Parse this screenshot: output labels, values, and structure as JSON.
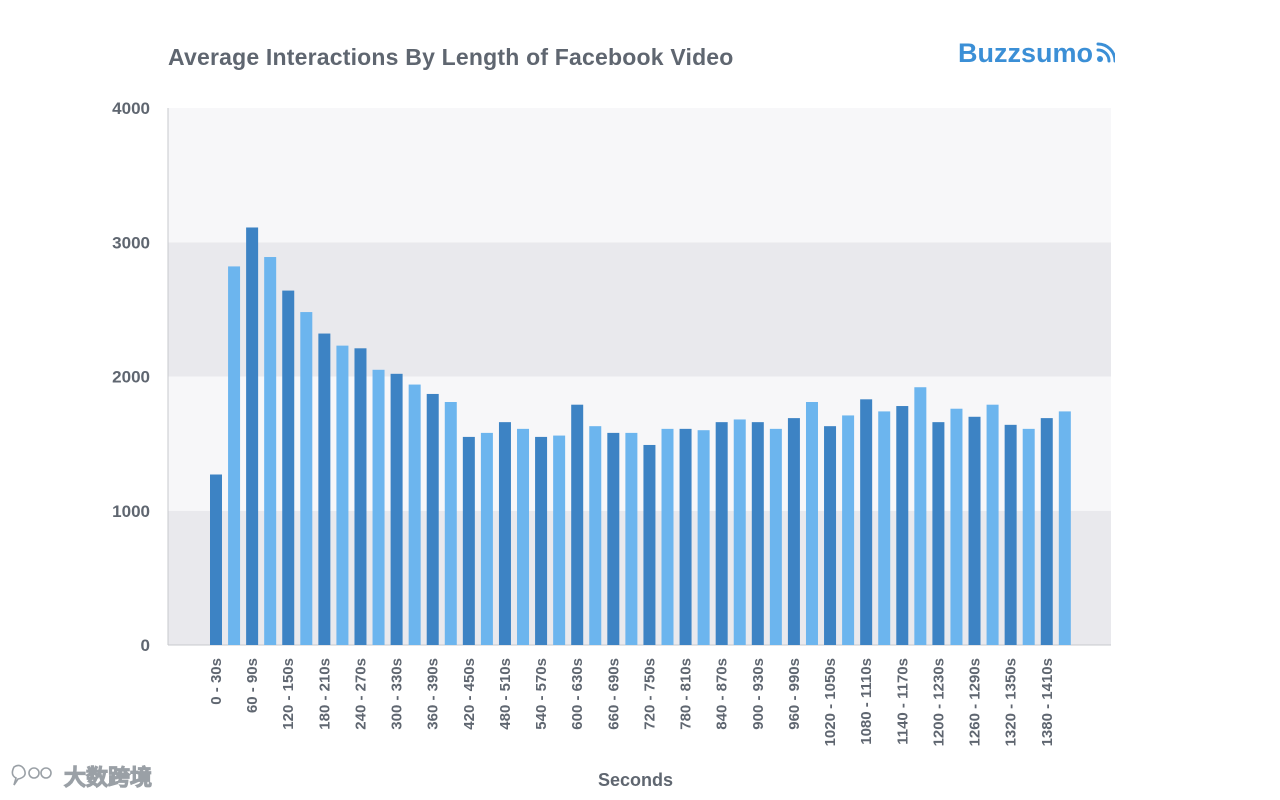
{
  "chart_data": {
    "type": "bar",
    "title": "Average Interactions By Length of Facebook Video",
    "xlabel": "Seconds",
    "ylabel": "",
    "ylim": [
      0,
      4000
    ],
    "yticks": [
      "0",
      "1000",
      "2000",
      "3000",
      "4000"
    ],
    "colors": [
      "#3d83c4",
      "#6cb5ee"
    ],
    "background_bands": [
      "#e9e9ed",
      "#f7f7f9"
    ],
    "grid": false,
    "categories": [
      "0 - 30s",
      "30 - 60s",
      "60 - 90s",
      "90 - 120s",
      "120 - 150s",
      "150 - 180s",
      "180 - 210s",
      "210 - 240s",
      "240 - 270s",
      "270 - 300s",
      "300 - 330s",
      "330 - 360s",
      "360 - 390s",
      "390 - 420s",
      "420 - 450s",
      "450 - 480s",
      "480 - 510s",
      "510 - 540s",
      "540 - 570s",
      "570 - 600s",
      "600 - 630s",
      "630 - 660s",
      "660 - 690s",
      "690 - 720s",
      "720 - 750s",
      "750 - 780s",
      "780 - 810s",
      "810 - 840s",
      "840 - 870s",
      "870 - 900s",
      "900 - 930s",
      "930 - 960s",
      "960 - 990s",
      "990 - 1020s",
      "1020 - 1050s",
      "1050 - 1080s",
      "1080 - 1110s",
      "1110 - 1140s",
      "1140 - 1170s",
      "1170 - 1200s",
      "1200 - 1230s",
      "1230 - 1260s",
      "1260 - 1290s",
      "1290 - 1320s",
      "1320 - 1350s",
      "1350 - 1380s",
      "1380 - 1410s",
      "1410 - 1440s"
    ],
    "shown_tick_labels": [
      "0 - 30s",
      "60 - 90s",
      "120 - 150s",
      "180 - 210s",
      "240 - 270s",
      "300 - 330s",
      "360 - 390s",
      "420 - 450s",
      "480 - 510s",
      "540 - 570s",
      "600 - 630s",
      "660 - 690s",
      "720 - 750s",
      "780 - 810s",
      "840 - 870s",
      "900 - 930s",
      "960 - 990s",
      "1020 - 1050s",
      "1080 - 1110s",
      "1140 - 1170s",
      "1200 - 1230s",
      "1260 - 1290s",
      "1320 - 1350s",
      "1380 - 1410s"
    ],
    "values": [
      1270,
      2820,
      3110,
      2890,
      2640,
      2480,
      2320,
      2230,
      2210,
      2050,
      2020,
      1940,
      1870,
      1810,
      1550,
      1580,
      1660,
      1610,
      1550,
      1560,
      1790,
      1630,
      1580,
      1580,
      1490,
      1610,
      1610,
      1600,
      1660,
      1680,
      1660,
      1610,
      1690,
      1810,
      1630,
      1710,
      1830,
      1740,
      1780,
      1920,
      1660,
      1760,
      1700,
      1790,
      1640,
      1610,
      1690,
      1740
    ]
  },
  "brand": {
    "name": "Buzzsumo",
    "icon": "wifi-signal-icon",
    "color": "#3b8fd6"
  },
  "watermark": {
    "text": "大数跨境",
    "icon": "dialog-logo-icon"
  }
}
